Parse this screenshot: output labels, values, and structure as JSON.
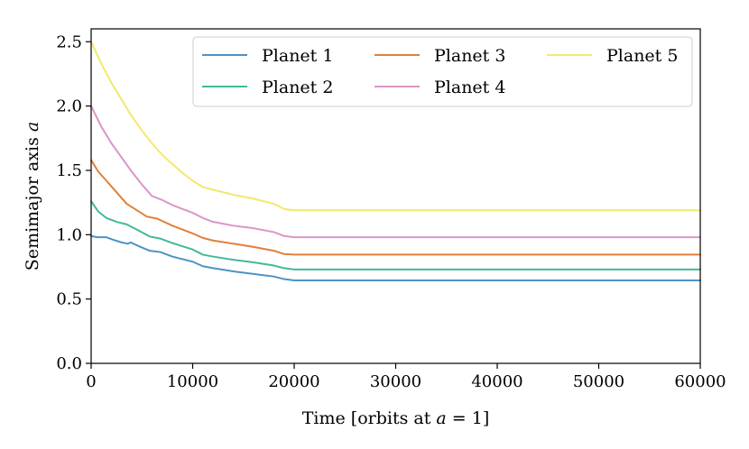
{
  "chart_data": {
    "type": "line",
    "title": "",
    "xlabel_prefix": "Time [orbits at ",
    "xlabel_var": "a",
    "xlabel_suffix": " = 1]",
    "ylabel_prefix": "Semimajor axis ",
    "ylabel_var": "a",
    "xlim": [
      0,
      60000
    ],
    "ylim": [
      0.0,
      2.6
    ],
    "xticks": [
      0,
      10000,
      20000,
      30000,
      40000,
      50000,
      60000
    ],
    "xtick_labels": [
      "0",
      "10000",
      "20000",
      "30000",
      "40000",
      "50000",
      "60000"
    ],
    "yticks": [
      0.0,
      0.5,
      1.0,
      1.5,
      2.0,
      2.5
    ],
    "ytick_labels": [
      "0.0",
      "0.5",
      "1.0",
      "1.5",
      "2.0",
      "2.5"
    ],
    "grid": false,
    "legend_position": "top-right",
    "series": [
      {
        "name": "Planet 1",
        "color": "#4b93c6",
        "x": [
          0,
          600,
          1500,
          2200,
          3000,
          3600,
          3900,
          4300,
          5000,
          5800,
          6800,
          8000,
          9000,
          10000,
          11000,
          12000,
          14000,
          16000,
          18000,
          19000,
          20000,
          30000,
          40000,
          50000,
          60000
        ],
        "y": [
          0.99,
          0.98,
          0.98,
          0.96,
          0.94,
          0.93,
          0.94,
          0.925,
          0.9,
          0.875,
          0.865,
          0.83,
          0.81,
          0.79,
          0.755,
          0.74,
          0.715,
          0.695,
          0.675,
          0.655,
          0.645,
          0.645,
          0.645,
          0.645,
          0.645
        ]
      },
      {
        "name": "Planet 2",
        "color": "#43b89a",
        "x": [
          0,
          700,
          1500,
          2500,
          3500,
          4500,
          5800,
          6800,
          8000,
          9000,
          10000,
          11000,
          12000,
          14000,
          16000,
          18000,
          19000,
          20000,
          30000,
          40000,
          50000,
          60000
        ],
        "y": [
          1.26,
          1.18,
          1.13,
          1.1,
          1.08,
          1.04,
          0.985,
          0.97,
          0.935,
          0.91,
          0.885,
          0.845,
          0.83,
          0.805,
          0.785,
          0.76,
          0.74,
          0.73,
          0.73,
          0.73,
          0.73,
          0.73
        ]
      },
      {
        "name": "Planet 3",
        "color": "#e0803a",
        "x": [
          0,
          700,
          1500,
          2500,
          3500,
          4500,
          5500,
          6500,
          8000,
          9000,
          10000,
          11000,
          12000,
          14000,
          16000,
          18000,
          19000,
          20000,
          30000,
          40000,
          50000,
          60000
        ],
        "y": [
          1.58,
          1.49,
          1.42,
          1.33,
          1.24,
          1.19,
          1.14,
          1.125,
          1.07,
          1.04,
          1.01,
          0.975,
          0.955,
          0.93,
          0.905,
          0.875,
          0.85,
          0.845,
          0.845,
          0.845,
          0.845,
          0.845
        ]
      },
      {
        "name": "Planet 4",
        "color": "#dc95c8",
        "x": [
          0,
          1000,
          2000,
          3000,
          4000,
          5000,
          6000,
          7000,
          8000,
          9000,
          10000,
          11000,
          12000,
          14000,
          16000,
          18000,
          19000,
          20000,
          30000,
          40000,
          50000,
          60000
        ],
        "y": [
          2.0,
          1.84,
          1.71,
          1.6,
          1.49,
          1.39,
          1.3,
          1.27,
          1.23,
          1.2,
          1.17,
          1.13,
          1.1,
          1.07,
          1.05,
          1.02,
          0.99,
          0.98,
          0.98,
          0.98,
          0.98,
          0.98
        ]
      },
      {
        "name": "Planet 5",
        "color": "#f3e86b",
        "x": [
          0,
          1000,
          2000,
          3000,
          4000,
          5000,
          6000,
          7000,
          8000,
          9000,
          10000,
          11000,
          12000,
          14000,
          16000,
          18000,
          19000,
          20000,
          30000,
          40000,
          50000,
          60000
        ],
        "y": [
          2.5,
          2.33,
          2.18,
          2.05,
          1.92,
          1.81,
          1.71,
          1.62,
          1.55,
          1.48,
          1.42,
          1.37,
          1.35,
          1.31,
          1.28,
          1.24,
          1.2,
          1.19,
          1.19,
          1.19,
          1.19,
          1.19
        ]
      }
    ]
  }
}
